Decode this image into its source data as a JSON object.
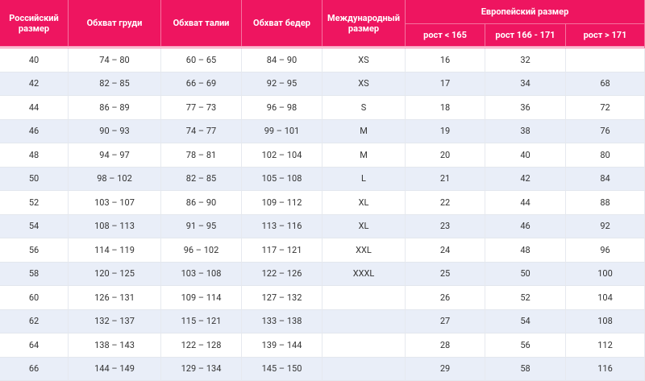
{
  "table": {
    "header": {
      "columns": [
        "Российский размер",
        "Обхват груди",
        "Обхват талии",
        "Обхват бедер",
        "Международный размер"
      ],
      "group": "Европейский размер",
      "subcolumns": [
        "рост < 165",
        "рост 166 - 171",
        "рост > 171"
      ]
    },
    "rows": [
      [
        "40",
        "74 – 80",
        "60 – 65",
        "84 – 90",
        "XS",
        "16",
        "32",
        null
      ],
      [
        "42",
        "82 – 85",
        "66 – 69",
        "92 – 95",
        "XS",
        "17",
        "34",
        "68"
      ],
      [
        "44",
        "86 – 89",
        "77 – 73",
        "96 – 98",
        "S",
        "18",
        "36",
        "72"
      ],
      [
        "46",
        "90 – 93",
        "74 – 77",
        "99 – 101",
        "M",
        "19",
        "38",
        "76"
      ],
      [
        "48",
        "94 – 97",
        "78 – 81",
        "102 – 104",
        "M",
        "20",
        "40",
        "80"
      ],
      [
        "50",
        "98 – 102",
        "82 – 85",
        "105 – 108",
        "L",
        "21",
        "42",
        "84"
      ],
      [
        "52",
        "103 – 107",
        "86 – 90",
        "109 – 112",
        "XL",
        "22",
        "44",
        "88"
      ],
      [
        "54",
        "108 – 113",
        "91 – 95",
        "113 – 116",
        "XL",
        "23",
        "46",
        "92"
      ],
      [
        "56",
        "114 – 119",
        "96 – 102",
        "117 – 121",
        "XXL",
        "24",
        "48",
        "96"
      ],
      [
        "58",
        "120 – 125",
        "103 – 108",
        "122 – 126",
        "XXXL",
        "25",
        "50",
        "100"
      ],
      [
        "60",
        "126 – 131",
        "109 – 114",
        "127 – 132",
        null,
        "26",
        "52",
        "104"
      ],
      [
        "62",
        "132 – 137",
        "115 – 121",
        "133 – 138",
        null,
        "27",
        "54",
        "108"
      ],
      [
        "64",
        "138 – 143",
        "122 – 128",
        "139 – 144",
        null,
        "28",
        "56",
        "112"
      ],
      [
        "66",
        "144 – 149",
        "129 – 134",
        "145 – 150",
        null,
        "29",
        "58",
        "116"
      ]
    ]
  }
}
